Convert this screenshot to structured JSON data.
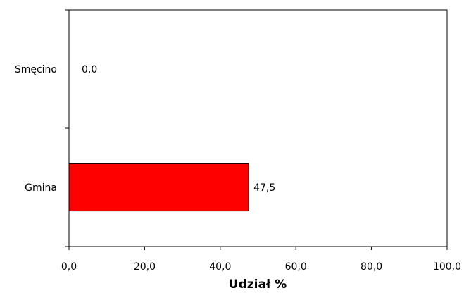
{
  "chart_data": {
    "type": "bar",
    "orientation": "horizontal",
    "categories": [
      "Smęcino",
      "Gmina"
    ],
    "values": [
      0.0,
      47.5
    ],
    "value_labels": [
      "0,0",
      "47,5"
    ],
    "title": "",
    "xlabel": "Udział %",
    "ylabel": "",
    "xlim": [
      0,
      100
    ],
    "x_ticks": [
      0,
      20,
      40,
      60,
      80,
      100
    ],
    "x_tick_labels": [
      "0,0",
      "20,0",
      "40,0",
      "60,0",
      "80,0",
      "100,0"
    ],
    "grid": false,
    "legend": "none",
    "bar_color": "#ff0000",
    "bar_edge_color": "#000000"
  }
}
